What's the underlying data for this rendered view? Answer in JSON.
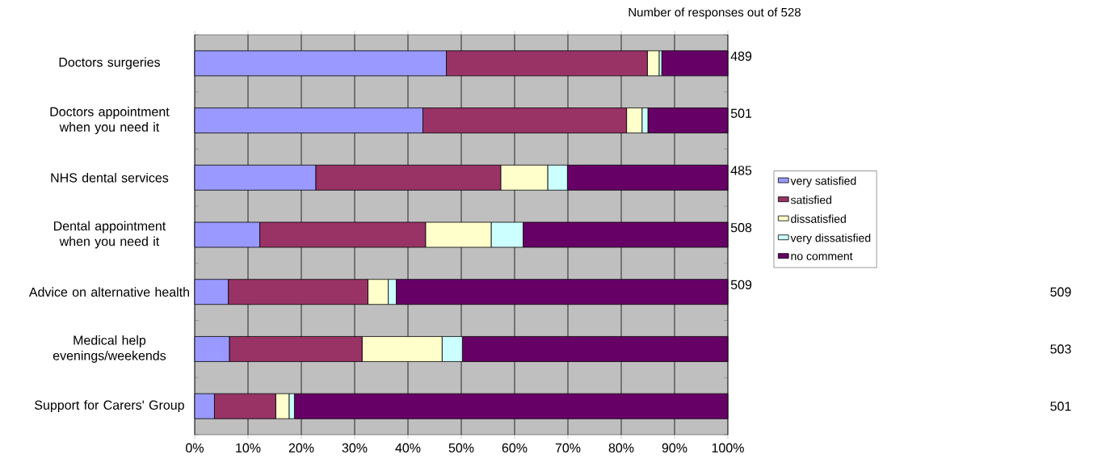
{
  "chart_data": {
    "type": "bar",
    "orientation": "horizontal",
    "stacked": true,
    "categories": [
      "Doctors surgeries",
      "Doctors appointment when you need it",
      "NHS dental services",
      "Dental appointment when you need it",
      "Advice on alternative health",
      "Medical help evenings/weekends",
      "Support for Carers' Group"
    ],
    "series": [
      {
        "name": "very satisfied",
        "color": "#9999ff",
        "values": [
          47.2,
          42.8,
          22.7,
          12.2,
          6.3,
          6.5,
          3.7
        ]
      },
      {
        "name": "satisfied",
        "color": "#993366",
        "values": [
          37.7,
          38.2,
          34.7,
          31.1,
          26.2,
          24.9,
          11.5
        ]
      },
      {
        "name": "dissatisfied",
        "color": "#ffffcc",
        "values": [
          2.2,
          2.9,
          8.8,
          12.3,
          3.8,
          15.0,
          2.5
        ]
      },
      {
        "name": "very dissatisfied",
        "color": "#ccffff",
        "values": [
          0.5,
          1.1,
          3.7,
          6.0,
          1.5,
          3.8,
          1.0
        ]
      },
      {
        "name": "no comment",
        "color": "#660066",
        "values": [
          12.4,
          15.0,
          30.1,
          38.4,
          62.2,
          49.8,
          81.3
        ]
      }
    ],
    "xlim": [
      0,
      100
    ],
    "xticks": [
      {
        "value": 0,
        "label": "0%"
      },
      {
        "value": 10,
        "label": "10%"
      },
      {
        "value": 20,
        "label": "20%"
      },
      {
        "value": 30,
        "label": "30%"
      },
      {
        "value": 40,
        "label": "40%"
      },
      {
        "value": 50,
        "label": "50%"
      },
      {
        "value": 60,
        "label": "60%"
      },
      {
        "value": 70,
        "label": "70%"
      },
      {
        "value": 80,
        "label": "80%"
      },
      {
        "value": 90,
        "label": "90%"
      },
      {
        "value": 100,
        "label": "100%"
      }
    ],
    "grid": "x",
    "legend": "right",
    "annotations": [
      "Number of responses out of 528",
      "489",
      "501",
      "485",
      "508",
      "509",
      "509",
      "503",
      "501"
    ]
  }
}
